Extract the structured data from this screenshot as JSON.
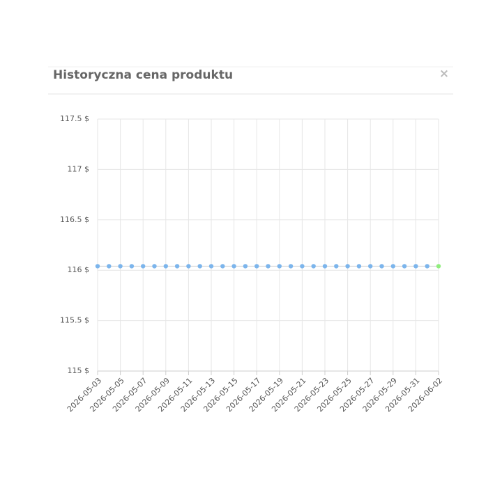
{
  "modal": {
    "title": "Historyczna cena produktu",
    "close": "×"
  },
  "chart_data": {
    "type": "line",
    "categories": [
      "2026-05-03",
      null,
      "2026-05-05",
      null,
      "2026-05-07",
      null,
      "2026-05-09",
      null,
      "2026-05-11",
      null,
      "2026-05-13",
      null,
      "2026-05-15",
      null,
      "2026-05-17",
      null,
      "2026-05-19",
      null,
      "2026-05-21",
      null,
      "2026-05-23",
      null,
      "2026-05-25",
      null,
      "2026-05-27",
      null,
      "2026-05-29",
      null,
      "2026-05-31",
      null,
      "2026-06-02"
    ],
    "series": [
      {
        "color": "#7cb5ec",
        "last_point_color": "#90ed7d",
        "values": [
          116.04,
          116.04,
          116.04,
          116.04,
          116.04,
          116.04,
          116.04,
          116.04,
          116.04,
          116.04,
          116.04,
          116.04,
          116.04,
          116.04,
          116.04,
          116.04,
          116.04,
          116.04,
          116.04,
          116.04,
          116.04,
          116.04,
          116.04,
          116.04,
          116.04,
          116.04,
          116.04,
          116.04,
          116.04,
          116.04,
          116.04
        ]
      }
    ],
    "ylim": [
      115,
      117.5
    ],
    "yticks": [
      {
        "value": 115,
        "label": "115 $"
      },
      {
        "value": 115.5,
        "label": "115.5 $"
      },
      {
        "value": 116,
        "label": "116 $"
      },
      {
        "value": 116.5,
        "label": "116.5 $"
      },
      {
        "value": 117,
        "label": "117 $"
      },
      {
        "value": 117.5,
        "label": "117.5 $"
      }
    ],
    "grid": true
  }
}
